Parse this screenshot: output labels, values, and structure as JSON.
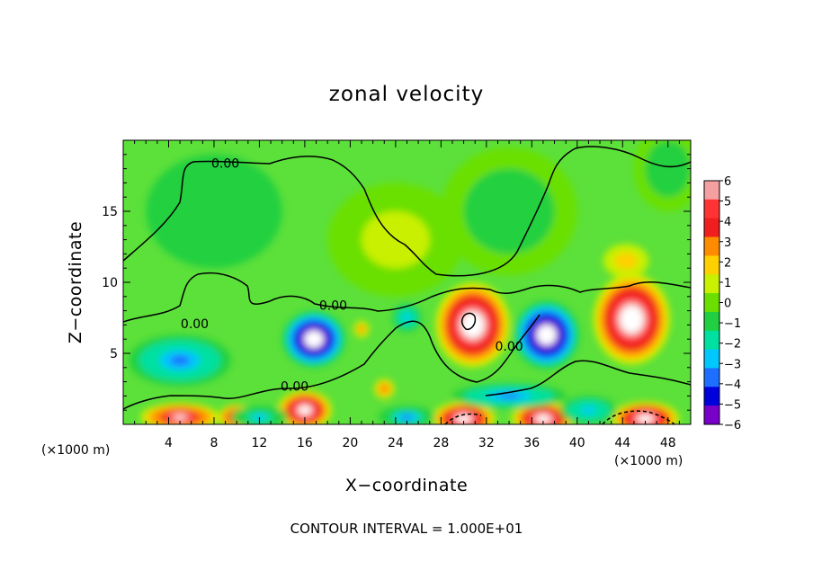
{
  "chart_data": {
    "type": "heatmap",
    "title": "zonal velocity",
    "xlabel": "X−coordinate",
    "ylabel": "Z−coordinate",
    "x_unit": "(×1000 m)",
    "y_unit": "(×1000 m)",
    "xlim": [
      0,
      50
    ],
    "ylim": [
      0,
      20
    ],
    "x_ticks": [
      4,
      8,
      12,
      16,
      20,
      24,
      28,
      32,
      36,
      40,
      44,
      48
    ],
    "y_ticks": [
      5,
      10,
      15
    ],
    "colorbar": {
      "ticks": [
        6,
        5,
        4,
        3,
        2,
        1,
        0,
        -1,
        -2,
        -3,
        -4,
        -5,
        -6
      ],
      "tick_labels": [
        "6",
        "5",
        "4",
        "3",
        "2",
        "1",
        "0",
        "−1",
        "−2",
        "−3",
        "−4",
        "−5",
        "−6"
      ],
      "colors": [
        "#f5a0a0",
        "#ff3333",
        "#f01e1e",
        "#ff8c00",
        "#ffd000",
        "#c8f000",
        "#6be000",
        "#20d040",
        "#00e0a0",
        "#00c8ff",
        "#1e6eff",
        "#0000dc",
        "#7800c8"
      ]
    },
    "contour_labels": [
      {
        "text": "0.00",
        "x": 9.0,
        "z": 18.4
      },
      {
        "text": "0.00",
        "x": 18.5,
        "z": 8.4
      },
      {
        "text": "0.00",
        "x": 6.3,
        "z": 7.1
      },
      {
        "text": "0.00",
        "x": 15.1,
        "z": 2.7
      },
      {
        "text": "0.00",
        "x": 34.0,
        "z": 5.5
      }
    ],
    "contour_interval_note": "CONTOUR INTERVAL = 1.000E+01",
    "features": [
      {
        "kind": "positive",
        "x": 30.8,
        "z": 7.0,
        "rx": 3.3,
        "rz": 3.0,
        "peak": 9
      },
      {
        "kind": "positive",
        "x": 44.8,
        "z": 7.4,
        "rx": 3.4,
        "rz": 3.2,
        "peak": 9
      },
      {
        "kind": "positive",
        "x": 44.3,
        "z": 11.5,
        "rx": 2.0,
        "rz": 1.2,
        "peak": 2.5
      },
      {
        "kind": "positive",
        "x": 23.0,
        "z": 2.5,
        "rx": 0.9,
        "rz": 0.7,
        "peak": 4
      },
      {
        "kind": "positive",
        "x": 21.0,
        "z": 6.7,
        "rx": 0.7,
        "rz": 0.6,
        "peak": 3.5
      },
      {
        "kind": "positive",
        "x": 5.0,
        "z": 0.5,
        "rx": 3.5,
        "rz": 1.0,
        "peak": 7
      },
      {
        "kind": "positive",
        "x": 10.0,
        "z": 0.5,
        "rx": 1.6,
        "rz": 0.9,
        "peak": 7
      },
      {
        "kind": "positive",
        "x": 16.0,
        "z": 1.0,
        "rx": 2.4,
        "rz": 1.4,
        "peak": 8
      },
      {
        "kind": "positive",
        "x": 30.0,
        "z": 0.4,
        "rx": 2.8,
        "rz": 1.2,
        "peak": 8
      },
      {
        "kind": "positive",
        "x": 37.0,
        "z": 0.4,
        "rx": 2.8,
        "rz": 1.2,
        "peak": 8
      },
      {
        "kind": "positive",
        "x": 46.0,
        "z": 0.4,
        "rx": 3.0,
        "rz": 1.2,
        "peak": 8
      },
      {
        "kind": "negative",
        "x": 5.0,
        "z": 4.5,
        "rx": 4.5,
        "rz": 1.8,
        "peak": -4
      },
      {
        "kind": "negative",
        "x": 16.8,
        "z": 6.0,
        "rx": 2.8,
        "rz": 2.0,
        "peak": -9
      },
      {
        "kind": "negative",
        "x": 37.3,
        "z": 6.3,
        "rx": 2.9,
        "rz": 2.4,
        "peak": -9
      },
      {
        "kind": "negative",
        "x": 25.0,
        "z": 7.5,
        "rx": 1.3,
        "rz": 1.0,
        "peak": -3
      },
      {
        "kind": "negative",
        "x": 34.0,
        "z": 2.0,
        "rx": 5.0,
        "rz": 0.9,
        "peak": -4
      },
      {
        "kind": "negative",
        "x": 12.0,
        "z": 0.5,
        "rx": 2.5,
        "rz": 0.8,
        "peak": -2.5
      },
      {
        "kind": "negative",
        "x": 41.0,
        "z": 1.0,
        "rx": 2.5,
        "rz": 1.0,
        "peak": -3
      },
      {
        "kind": "negative",
        "x": 25.0,
        "z": 0.5,
        "rx": 2.5,
        "rz": 0.8,
        "peak": -3.5
      },
      {
        "kind": "negative",
        "x": 8.0,
        "z": 15.0,
        "rx": 6.0,
        "rz": 4.0,
        "peak": -1.0
      },
      {
        "kind": "negative",
        "x": 34.0,
        "z": 15.0,
        "rx": 6.0,
        "rz": 4.5,
        "peak": -1.2
      },
      {
        "kind": "positive",
        "x": 24.0,
        "z": 13.0,
        "rx": 6.0,
        "rz": 4.0,
        "peak": 0.8
      },
      {
        "kind": "negative",
        "x": 48.0,
        "z": 18.0,
        "rx": 3.0,
        "rz": 3.0,
        "peak": -1.3
      }
    ]
  }
}
